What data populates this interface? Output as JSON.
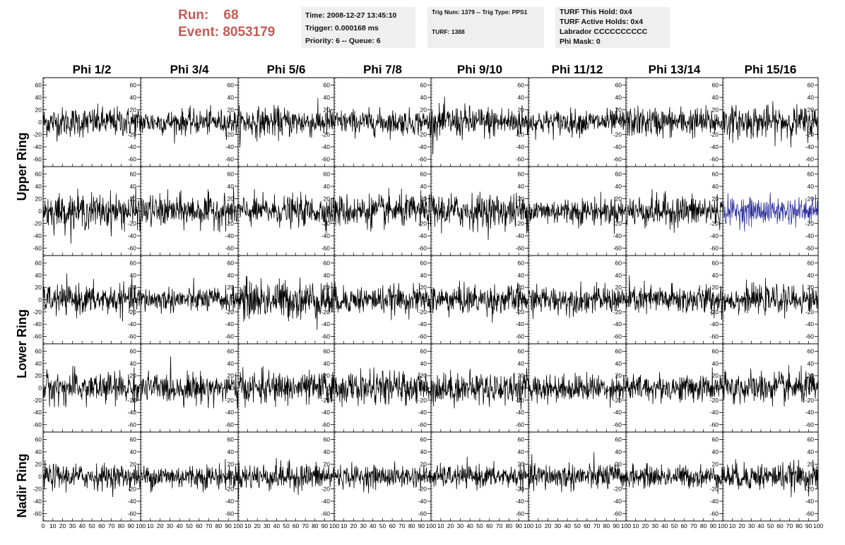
{
  "header": {
    "run_label": "Run:",
    "run_value": "68",
    "event_label": "Event:",
    "event_value": "8053179",
    "accent_color": "#c55b54"
  },
  "info_time": {
    "time": "Time: 2008-12-27 13:45:10",
    "trigger": "Trigger: 0.000168 ms",
    "priority": "Priority: 6 -- Queue: 6"
  },
  "info_trig": {
    "trig_line": "Trig Num: 1379 -- Trig Type: PPS1",
    "turf": "TURF: 1388"
  },
  "info_turf": {
    "this_hold": "TURF This Hold: 0x4",
    "active_holds": "TURF Active Holds: 0x4",
    "labrador": "Labrador CCCCCCCCCC",
    "phi_mask": "Phi Mask: 0"
  },
  "chart_data": {
    "type": "line",
    "columns": [
      "Phi 1/2",
      "Phi 3/4",
      "Phi 5/6",
      "Phi 7/8",
      "Phi 9/10",
      "Phi 11/12",
      "Phi 13/14",
      "Phi 15/16"
    ],
    "rings": [
      "Upper Ring",
      "Lower Ring",
      "Nadir Ring"
    ],
    "rows": 5,
    "row_to_ring": [
      0,
      0,
      1,
      1,
      2
    ],
    "ylim": [
      -72,
      72
    ],
    "yticks": [
      -60,
      -40,
      -20,
      0,
      20,
      40,
      60
    ],
    "xlim": [
      0,
      100
    ],
    "xticks": [
      0,
      10,
      20,
      30,
      40,
      50,
      60,
      70,
      80,
      90,
      100
    ],
    "x_tick_labels": [
      "0",
      "10",
      "20",
      "30",
      "40",
      "50",
      "60",
      "70",
      "80",
      "90",
      "100"
    ],
    "samples_per_trace": 260,
    "trace_color": "#000000",
    "highlight_color": "#2b2fa0",
    "highlight_panel": {
      "row": 1,
      "col": 7
    },
    "amplitude_rms": [
      [
        12,
        10,
        12,
        10,
        13,
        10,
        12,
        13
      ],
      [
        14,
        13,
        12,
        13,
        14,
        11,
        13,
        11
      ],
      [
        12,
        10,
        16,
        11,
        12,
        11,
        12,
        11
      ],
      [
        13,
        12,
        13,
        13,
        13,
        11,
        11,
        13
      ],
      [
        10,
        10,
        11,
        9,
        9,
        11,
        9,
        11
      ]
    ]
  }
}
